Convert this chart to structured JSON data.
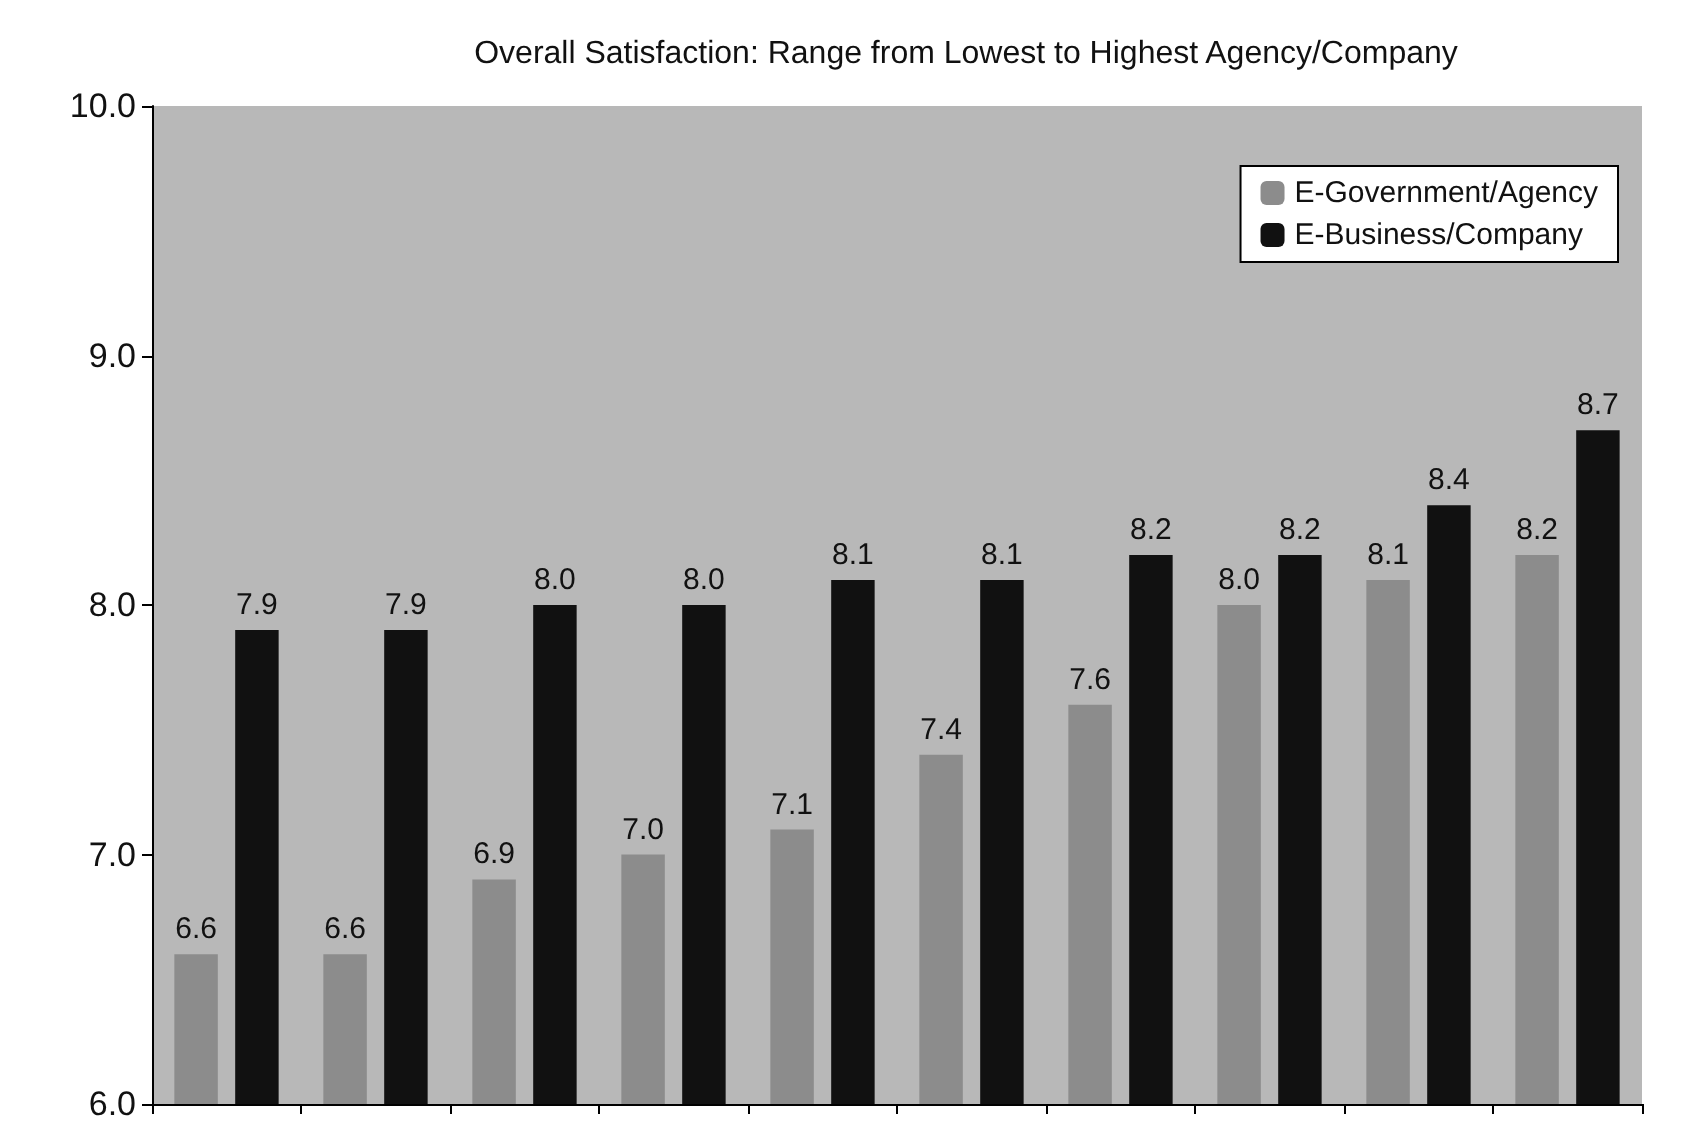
{
  "chart_data": {
    "type": "bar",
    "title": "Overall Satisfaction: Range from Lowest to Highest Agency/Company",
    "categories": [
      null,
      null,
      null,
      null,
      null,
      null,
      null,
      null,
      null,
      null
    ],
    "series": [
      {
        "name": "E-Government/Agency",
        "color": "#8c8c8c",
        "values": [
          6.6,
          6.6,
          6.9,
          7.0,
          7.1,
          7.4,
          7.6,
          8.0,
          8.1,
          8.2
        ],
        "value_labels": [
          "6.6",
          "6.6",
          "6.9",
          "7.0",
          "7.1",
          "7.4",
          "7.6",
          "8.0",
          "8.1",
          "8.2"
        ]
      },
      {
        "name": "E-Business/Company",
        "color": "#111111",
        "values": [
          7.9,
          7.9,
          8.0,
          8.0,
          8.1,
          8.1,
          8.2,
          8.2,
          8.4,
          8.7
        ],
        "value_labels": [
          "7.9",
          "7.9",
          "8.0",
          "8.0",
          "8.1",
          "8.1",
          "8.2",
          "8.2",
          "8.4",
          "8.7"
        ]
      }
    ],
    "ylim": [
      6,
      10
    ],
    "yticks": [
      {
        "value": 6,
        "label": "6.0"
      },
      {
        "value": 7,
        "label": "7.0"
      },
      {
        "value": 8,
        "label": "8.0"
      },
      {
        "value": 9,
        "label": "9.0"
      },
      {
        "value": 10,
        "label": "10.0"
      }
    ],
    "grid": false,
    "legend": "top right"
  }
}
